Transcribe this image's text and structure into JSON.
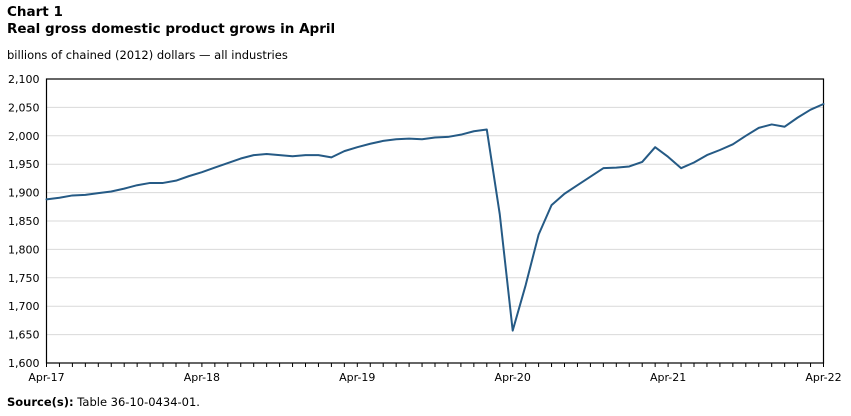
{
  "header": {
    "chart_label": "Chart 1",
    "title": "Real gross domestic product grows in April",
    "subtitle": "billions of chained (2012) dollars — all industries"
  },
  "source": {
    "label": "Source(s):",
    "text": "Table 36-10-0434-01."
  },
  "chart_data": {
    "type": "line",
    "title": "Real gross domestic product grows in April",
    "ylabel": "billions of chained (2012) dollars — all industries",
    "xlabel": "",
    "ylim": [
      1600,
      2100
    ],
    "ytick_step": 50,
    "grid": true,
    "legend_position": "none",
    "ytick_labels": [
      "2,100",
      "2,050",
      "2,000",
      "1,950",
      "1,900",
      "1,850",
      "1,800",
      "1,750",
      "1,700",
      "1,650",
      "1,600"
    ],
    "xtick_labels": [
      "Apr-17",
      "Apr-18",
      "Apr-19",
      "Apr-20",
      "Apr-21",
      "Apr-22"
    ],
    "x": [
      "Apr-17",
      "May-17",
      "Jun-17",
      "Jul-17",
      "Aug-17",
      "Sep-17",
      "Oct-17",
      "Nov-17",
      "Dec-17",
      "Jan-18",
      "Feb-18",
      "Mar-18",
      "Apr-18",
      "May-18",
      "Jun-18",
      "Jul-18",
      "Aug-18",
      "Sep-18",
      "Oct-18",
      "Nov-18",
      "Dec-18",
      "Jan-19",
      "Feb-19",
      "Mar-19",
      "Apr-19",
      "May-19",
      "Jun-19",
      "Jul-19",
      "Aug-19",
      "Sep-19",
      "Oct-19",
      "Nov-19",
      "Dec-19",
      "Jan-20",
      "Feb-20",
      "Mar-20",
      "Apr-20",
      "May-20",
      "Jun-20",
      "Jul-20",
      "Aug-20",
      "Sep-20",
      "Oct-20",
      "Nov-20",
      "Dec-20",
      "Jan-21",
      "Feb-21",
      "Mar-21",
      "Apr-21",
      "May-21",
      "Jun-21",
      "Jul-21",
      "Aug-21",
      "Sep-21",
      "Oct-21",
      "Nov-21",
      "Dec-21",
      "Jan-22",
      "Feb-22",
      "Mar-22",
      "Apr-22"
    ],
    "values": [
      1888,
      1891,
      1895,
      1896,
      1899,
      1902,
      1907,
      1913,
      1917,
      1917,
      1921,
      1929,
      1936,
      1944,
      1952,
      1960,
      1966,
      1968,
      1966,
      1964,
      1966,
      1966,
      1962,
      1973,
      1980,
      1986,
      1991,
      1994,
      1995,
      1994,
      1997,
      1998,
      2002,
      2008,
      2011,
      1862,
      1657,
      1737,
      1826,
      1878,
      1898,
      1913,
      1928,
      1943,
      1944,
      1946,
      1954,
      1980,
      1963,
      1943,
      1953,
      1966,
      1975,
      1985,
      2000,
      2014,
      2020,
      2016,
      2032,
      2046,
      2056
    ],
    "colors": {
      "line": "#255a85",
      "grid": "#d9d9d9",
      "axis": "#000000"
    }
  }
}
